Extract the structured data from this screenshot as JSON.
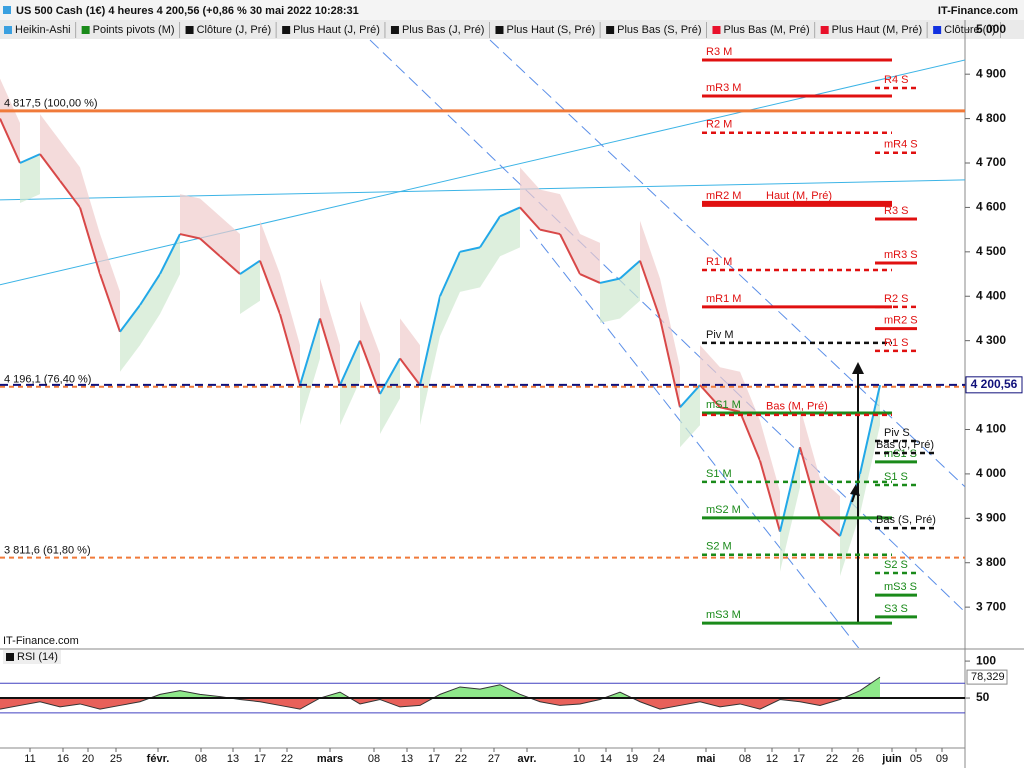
{
  "chart_data": [
    {
      "type": "line",
      "title": "US 500 Cash (1€) 4 heures 4 200,56 (+0,86 % 30 mai 2022 10:28:31",
      "source": "IT-Finance.com",
      "watermark": "IT-Finance.com",
      "legend": [
        {
          "name": "Heikin-Ashi",
          "color": "#3aa0e0"
        },
        {
          "name": "Points pivots (M)",
          "color": "#1a8a1a"
        },
        {
          "name": "Clôture (J, Pré)",
          "color": "#111111"
        },
        {
          "name": "Plus Haut (J, Pré)",
          "color": "#111111"
        },
        {
          "name": "Plus Bas (J, Pré)",
          "color": "#111111"
        },
        {
          "name": "Plus Haut (S, Pré)",
          "color": "#111111"
        },
        {
          "name": "Plus Bas (S, Pré)",
          "color": "#111111"
        },
        {
          "name": "Plus Bas (M, Pré)",
          "color": "#e8102a"
        },
        {
          "name": "Plus Haut (M, Pré)",
          "color": "#e8102a"
        },
        {
          "name": "Clôture (J)",
          "color": "#1030e0"
        }
      ],
      "series": [
        {
          "name": "Heikin-Ashi",
          "up_color": "#22a8e8",
          "down_color": "#d84848",
          "values": [
            4800,
            4700,
            4720,
            4660,
            4600,
            4450,
            4320,
            4380,
            4450,
            4540,
            4530,
            4490,
            4450,
            4480,
            4360,
            4200,
            4350,
            4200,
            4300,
            4180,
            4260,
            4200,
            4400,
            4500,
            4510,
            4580,
            4600,
            4550,
            4540,
            4450,
            4430,
            4440,
            4480,
            4350,
            4150,
            4200,
            4150,
            4140,
            4030,
            3870,
            4060,
            3900,
            3860,
            4000,
            4200
          ]
        }
      ],
      "xlim": [
        0,
        48.25
      ],
      "ylim": [
        3608,
        5022
      ],
      "yticks": [
        {
          "value": 3700,
          "label": "3 700"
        },
        {
          "value": 3800,
          "label": "3 800"
        },
        {
          "value": 3900,
          "label": "3 900"
        },
        {
          "value": 4000,
          "label": "4 000"
        },
        {
          "value": 4100,
          "label": "4 100"
        },
        {
          "value": 4200,
          "label": "4 200"
        },
        {
          "value": 4300,
          "label": "4 300"
        },
        {
          "value": 4400,
          "label": "4 400"
        },
        {
          "value": 4500,
          "label": "4 500"
        },
        {
          "value": 4600,
          "label": "4 600"
        },
        {
          "value": 4700,
          "label": "4 700"
        },
        {
          "value": 4800,
          "label": "4 800"
        },
        {
          "value": 4900,
          "label": "4 900"
        },
        {
          "value": 5000,
          "label": "5 000"
        }
      ],
      "current_price": {
        "value": 4200.56,
        "label": "4 200,56",
        "color": "#10107a"
      },
      "fibonacci": [
        {
          "value": 4817.5,
          "label": "4 817,5 (100,00 %)",
          "color": "#f07a3a",
          "dashed": false
        },
        {
          "value": 4196.1,
          "label": "4 196,1 (76,40 %)",
          "color": "#f07a3a",
          "dashed": true
        },
        {
          "value": 3811.6,
          "label": "3 811,6 (61,80 %)",
          "color": "#f07a3a",
          "dashed": true
        }
      ],
      "trendlines": [
        {
          "color": "#3cb4e6",
          "dashed": false,
          "x": [
            0,
            48.25
          ],
          "y": [
            4617,
            4662
          ]
        },
        {
          "color": "#3cb4e6",
          "dashed": false,
          "x": [
            0,
            48.25
          ],
          "y": [
            4426,
            4932
          ]
        },
        {
          "color": "#5a8ee8",
          "dashed": true,
          "x": [
            18.5,
            48.25
          ],
          "y": [
            4977,
            3689
          ]
        },
        {
          "color": "#5a8ee8",
          "dashed": true,
          "x": [
            24.5,
            48.25
          ],
          "y": [
            4977,
            3971
          ]
        },
        {
          "color": "#5a8ee8",
          "dashed": true,
          "x": [
            26.5,
            43
          ],
          "y": [
            4550,
            3604
          ]
        }
      ],
      "monthly_pivots": [
        {
          "label": "R3 M",
          "value": 4932,
          "color": "#e01010",
          "dashed": false
        },
        {
          "label": "mR3 M",
          "value": 4851,
          "color": "#e01010",
          "dashed": false
        },
        {
          "label": "R2 M",
          "value": 4768,
          "color": "#e01010",
          "dashed": true
        },
        {
          "label": "mR2 M",
          "value": 4608,
          "color": "#e01010",
          "dashed": false
        },
        {
          "label": "R1 M",
          "value": 4459,
          "color": "#e01010",
          "dashed": true
        },
        {
          "label": "mR1 M",
          "value": 4376,
          "color": "#e01010",
          "dashed": false
        },
        {
          "label": "Piv M",
          "value": 4295,
          "color": "#111111",
          "dashed": true
        },
        {
          "label": "mS1 M",
          "value": 4137,
          "color": "#1a8a1a",
          "dashed": false
        },
        {
          "label": "S1 M",
          "value": 3982,
          "color": "#1a8a1a",
          "dashed": true
        },
        {
          "label": "mS2 M",
          "value": 3901,
          "color": "#1a8a1a",
          "dashed": false
        },
        {
          "label": "S2 M",
          "value": 3818,
          "color": "#1a8a1a",
          "dashed": true
        },
        {
          "label": "mS3 M",
          "value": 3664,
          "color": "#1a8a1a",
          "dashed": false
        }
      ],
      "weekly_pivots": [
        {
          "label": "R4 S",
          "value": 4869,
          "color": "#e01010",
          "dashed": true
        },
        {
          "label": "mR4 S",
          "value": 4723,
          "color": "#e01010",
          "dashed": true
        },
        {
          "label": "R3 S",
          "value": 4574,
          "color": "#e01010",
          "dashed": false
        },
        {
          "label": "mR3 S",
          "value": 4475,
          "color": "#e01010",
          "dashed": false
        },
        {
          "label": "R2 S",
          "value": 4376,
          "color": "#e01010",
          "dashed": true
        },
        {
          "label": "mR2 S",
          "value": 4327,
          "color": "#e01010",
          "dashed": false
        },
        {
          "label": "R1 S",
          "value": 4277,
          "color": "#e01010",
          "dashed": true
        },
        {
          "label": "Piv S",
          "value": 4074,
          "color": "#111111",
          "dashed": true
        },
        {
          "label": "mS1 S",
          "value": 4027,
          "color": "#1a8a1a",
          "dashed": false
        },
        {
          "label": "S1 S",
          "value": 3975,
          "color": "#1a8a1a",
          "dashed": true
        },
        {
          "label": "S2 S",
          "value": 3777,
          "color": "#1a8a1a",
          "dashed": true
        },
        {
          "label": "mS3 S",
          "value": 3727,
          "color": "#1a8a1a",
          "dashed": false
        },
        {
          "label": "S3 S",
          "value": 3678,
          "color": "#1a8a1a",
          "dashed": false
        }
      ],
      "previous_extremes": [
        {
          "label": "Haut (M, Pré)",
          "value": 4608,
          "color": "#e01010",
          "dashed": false
        },
        {
          "label": "Bas (M, Pré)",
          "value": 4133,
          "color": "#e01010",
          "dashed": true
        },
        {
          "label": "Bas (J, Pré)",
          "value": 4047,
          "color": "#111111",
          "dashed": true
        },
        {
          "label": "Bas (S, Pré)",
          "value": 3878,
          "color": "#111111",
          "dashed": true
        }
      ]
    },
    {
      "type": "area",
      "title": "RSI (14)",
      "series": [
        {
          "name": "RSI (14)",
          "up_color": "#8ee88a",
          "down_color": "#e8605a",
          "values": [
            35,
            40,
            45,
            38,
            42,
            35,
            40,
            45,
            55,
            60,
            55,
            52,
            48,
            45,
            40,
            35,
            50,
            58,
            42,
            48,
            38,
            40,
            55,
            65,
            62,
            68,
            55,
            45,
            40,
            42,
            48,
            58,
            45,
            35,
            40,
            45,
            38,
            42,
            35,
            48,
            45,
            40,
            48,
            60,
            78.329
          ]
        }
      ],
      "current": {
        "value": 78.329,
        "label": "78,329"
      },
      "baseline": 50,
      "bands": [
        30,
        70
      ],
      "xlim": [
        0,
        48.25
      ],
      "ylim": [
        -17.6,
        115
      ],
      "yticks": [
        50,
        100
      ],
      "xticks": [
        {
          "value": 1.5,
          "label": "11"
        },
        {
          "value": 3.15,
          "label": "16"
        },
        {
          "value": 4.4,
          "label": "20"
        },
        {
          "value": 5.8,
          "label": "25"
        },
        {
          "value": 7.9,
          "label": "févr."
        },
        {
          "value": 10.05,
          "label": "08"
        },
        {
          "value": 11.65,
          "label": "13"
        },
        {
          "value": 13,
          "label": "17"
        },
        {
          "value": 14.35,
          "label": "22"
        },
        {
          "value": 16.5,
          "label": "mars"
        },
        {
          "value": 18.7,
          "label": "08"
        },
        {
          "value": 20.35,
          "label": "13"
        },
        {
          "value": 21.7,
          "label": "17"
        },
        {
          "value": 23.05,
          "label": "22"
        },
        {
          "value": 24.7,
          "label": "27"
        },
        {
          "value": 26.35,
          "label": "avr."
        },
        {
          "value": 28.95,
          "label": "10"
        },
        {
          "value": 30.3,
          "label": "14"
        },
        {
          "value": 31.6,
          "label": "19"
        },
        {
          "value": 32.95,
          "label": "24"
        },
        {
          "value": 35.3,
          "label": "mai"
        },
        {
          "value": 37.25,
          "label": "08"
        },
        {
          "value": 38.6,
          "label": "12"
        },
        {
          "value": 39.95,
          "label": "17"
        },
        {
          "value": 41.6,
          "label": "22"
        },
        {
          "value": 42.9,
          "label": "26"
        },
        {
          "value": 44.6,
          "label": "juin"
        },
        {
          "value": 45.8,
          "label": "05"
        },
        {
          "value": 47.1,
          "label": "09"
        }
      ]
    }
  ]
}
